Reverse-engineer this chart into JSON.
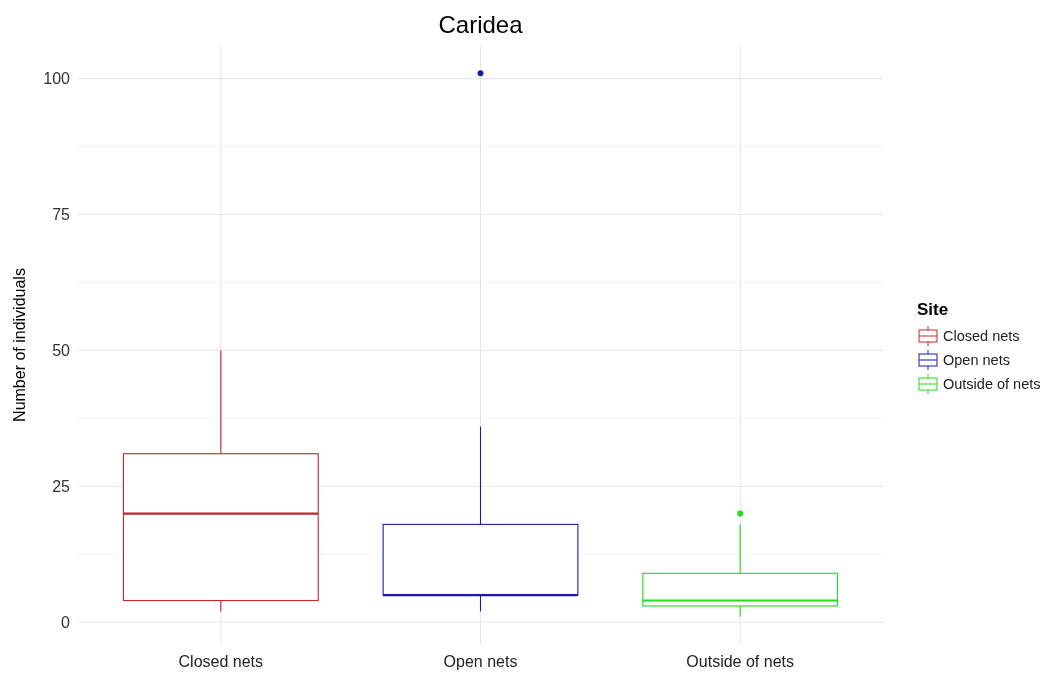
{
  "chart_data": {
    "type": "box",
    "title": "Caridea",
    "ylabel": "Number of individuals",
    "legend_title": "Site",
    "legend": "right",
    "grid": true,
    "categories": [
      "Closed nets",
      "Open nets",
      "Outside of nets"
    ],
    "series": [
      {
        "name": "Closed nets",
        "color": "#c2272d",
        "boxes": [
          {
            "low": 2,
            "q1": 4,
            "median": 20,
            "q3": 31,
            "high": 50
          },
          null,
          null
        ]
      },
      {
        "name": "Open nets",
        "color": "#1a1aa6",
        "boxes": [
          null,
          {
            "low": 2,
            "q1": 5,
            "median": 5,
            "q3": 18,
            "high": 36,
            "outliers": [
              101
            ]
          },
          null
        ]
      },
      {
        "name": "Outside of nets",
        "color": "#1fdd1f",
        "boxes": [
          null,
          null,
          {
            "low": 1,
            "q1": 3,
            "median": 4,
            "q3": 9,
            "high": 18,
            "outliers": [
              20
            ]
          }
        ]
      }
    ],
    "ylim": [
      -4,
      106
    ],
    "yticks": [
      0,
      25,
      50,
      75,
      100
    ]
  }
}
